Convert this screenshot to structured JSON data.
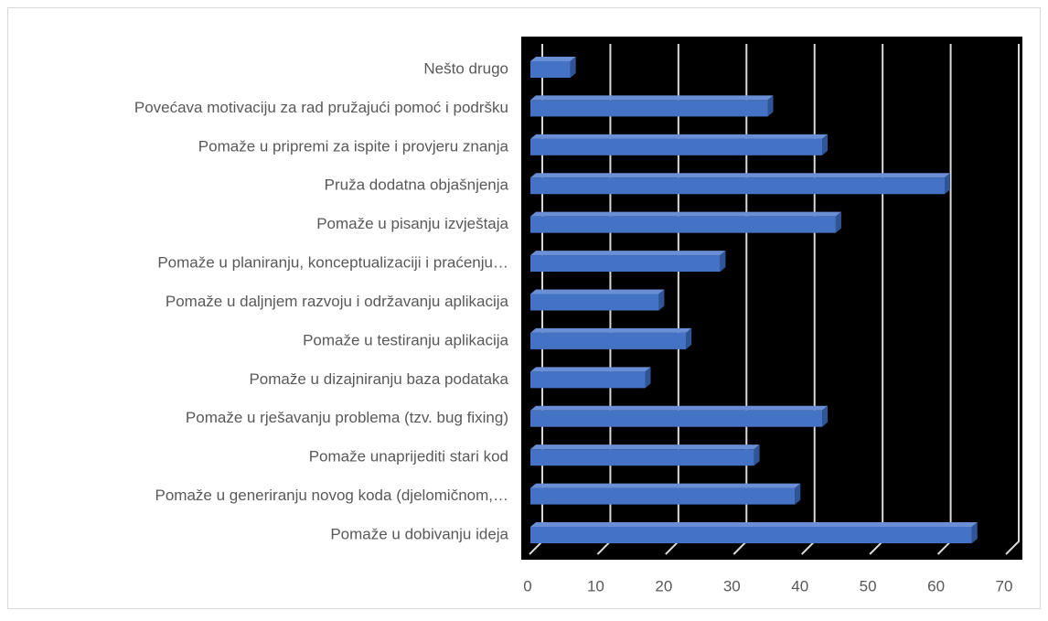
{
  "chart_data": {
    "type": "bar3d_horizontal",
    "categories": [
      "Nešto drugo",
      "Povećava motivaciju za rad pružajući pomoć i podršku",
      "Pomaže u pripremi za ispite i provjeru znanja",
      "Pruža dodatna objašnjenja",
      "Pomaže u pisanju izvještaja",
      "Pomaže u planiranju, konceptualizaciji i praćenju…",
      "Pomaže u daljnjem razvoju i održavanju aplikacija",
      "Pomaže u testiranju aplikacija",
      "Pomaže u dizajniranju baza podataka",
      "Pomaže u rješavanju problema (tzv. bug fixing)",
      "Pomaže unaprijediti stari kod",
      "Pomaže u generiranju novog koda (djelomičnom,…",
      "Pomaže u dobivanju ideja"
    ],
    "values": [
      6,
      35,
      43,
      61,
      45,
      28,
      19,
      23,
      17,
      43,
      33,
      39,
      65
    ],
    "color": "#4472c4",
    "xlim": [
      0,
      70
    ],
    "xticks": [
      0,
      10,
      20,
      30,
      40,
      50,
      60,
      70
    ],
    "grid": true
  }
}
